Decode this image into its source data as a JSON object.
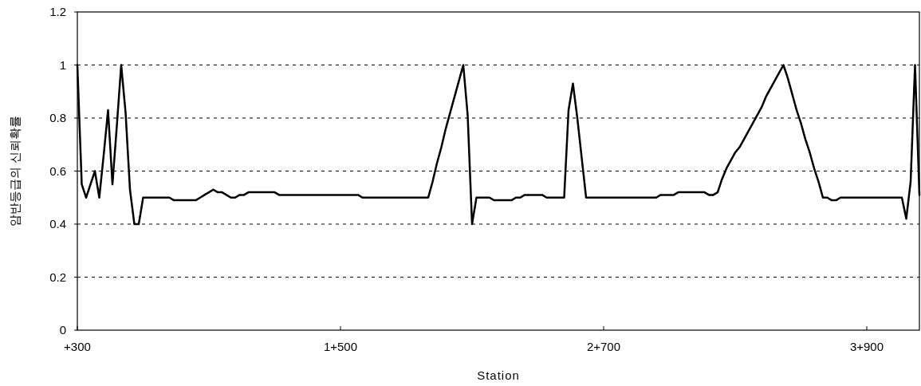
{
  "chart_data": {
    "type": "line",
    "xlabel": "Station",
    "ylabel": "암반등급의 신뢰확률",
    "categories": [
      "+300",
      null,
      null,
      null,
      null,
      null,
      null,
      null,
      null,
      null,
      null,
      null,
      null,
      null,
      null,
      null,
      null,
      null,
      null,
      null,
      null,
      null,
      null,
      null,
      null,
      null,
      null,
      null,
      null,
      null,
      null,
      null,
      null,
      null,
      null,
      null,
      null,
      null,
      null,
      null,
      null,
      null,
      null,
      null,
      null,
      null,
      null,
      null,
      null,
      null,
      null,
      null,
      null,
      null,
      null,
      null,
      null,
      null,
      null,
      null,
      "1+500",
      null,
      null,
      null,
      null,
      null,
      null,
      null,
      null,
      null,
      null,
      null,
      null,
      null,
      null,
      null,
      null,
      null,
      null,
      null,
      null,
      null,
      null,
      null,
      null,
      null,
      null,
      null,
      null,
      null,
      null,
      null,
      null,
      null,
      null,
      null,
      null,
      null,
      null,
      null,
      null,
      null,
      null,
      null,
      null,
      null,
      null,
      null,
      null,
      null,
      null,
      null,
      null,
      null,
      null,
      null,
      null,
      null,
      null,
      null,
      "2+700",
      null,
      null,
      null,
      null,
      null,
      null,
      null,
      null,
      null,
      null,
      null,
      null,
      null,
      null,
      null,
      null,
      null,
      null,
      null,
      null,
      null,
      null,
      null,
      null,
      null,
      null,
      null,
      null,
      null,
      null,
      null,
      null,
      null,
      null,
      null,
      null,
      null,
      null,
      null,
      null,
      null,
      null,
      null,
      null,
      null,
      null,
      null,
      null,
      null,
      null,
      null,
      null,
      null,
      null,
      null,
      null,
      null,
      null,
      null,
      "3+900",
      null,
      null,
      null,
      null,
      null,
      null,
      null,
      null,
      null,
      null,
      null,
      null
    ],
    "ylim": [
      0,
      1.2
    ],
    "yticks": [
      0,
      0.2,
      0.4,
      0.6,
      0.8,
      1,
      1.2
    ],
    "grid": "y",
    "marker": "none",
    "line_style": "solid",
    "series": [
      {
        "color": "#000000",
        "values": [
          1,
          0.55,
          0.5,
          0.55,
          0.6,
          0.5,
          0.66,
          0.83,
          0.55,
          0.77,
          1,
          0.82,
          0.53,
          0.4,
          0.4,
          0.5,
          0.5,
          0.5,
          0.5,
          0.5,
          0.5,
          0.5,
          0.49,
          0.49,
          0.49,
          0.49,
          0.49,
          0.49,
          0.5,
          0.51,
          0.52,
          0.53,
          0.52,
          0.52,
          0.51,
          0.5,
          0.5,
          0.51,
          0.51,
          0.52,
          0.52,
          0.52,
          0.52,
          0.52,
          0.52,
          0.52,
          0.51,
          0.51,
          0.51,
          0.51,
          0.51,
          0.51,
          0.51,
          0.51,
          0.51,
          0.51,
          0.51,
          0.51,
          0.51,
          0.51,
          0.51,
          0.51,
          0.51,
          0.51,
          0.51,
          0.5,
          0.5,
          0.5,
          0.5,
          0.5,
          0.5,
          0.5,
          0.5,
          0.5,
          0.5,
          0.5,
          0.5,
          0.5,
          0.5,
          0.5,
          0.5,
          0.56,
          0.63,
          0.69,
          0.76,
          0.82,
          0.88,
          0.94,
          1,
          0.81,
          0.4,
          0.5,
          0.5,
          0.5,
          0.5,
          0.49,
          0.49,
          0.49,
          0.49,
          0.49,
          0.5,
          0.5,
          0.51,
          0.51,
          0.51,
          0.51,
          0.51,
          0.5,
          0.5,
          0.5,
          0.5,
          0.5,
          0.83,
          0.93,
          0.8,
          0.65,
          0.5,
          0.5,
          0.5,
          0.5,
          0.5,
          0.5,
          0.5,
          0.5,
          0.5,
          0.5,
          0.5,
          0.5,
          0.5,
          0.5,
          0.5,
          0.5,
          0.5,
          0.51,
          0.51,
          0.51,
          0.51,
          0.52,
          0.52,
          0.52,
          0.52,
          0.52,
          0.52,
          0.52,
          0.51,
          0.51,
          0.52,
          0.57,
          0.61,
          0.64,
          0.67,
          0.69,
          0.72,
          0.75,
          0.78,
          0.81,
          0.84,
          0.88,
          0.91,
          0.94,
          0.97,
          1,
          0.95,
          0.89,
          0.83,
          0.78,
          0.72,
          0.67,
          0.61,
          0.56,
          0.5,
          0.5,
          0.49,
          0.49,
          0.5,
          0.5,
          0.5,
          0.5,
          0.5,
          0.5,
          0.5,
          0.5,
          0.5,
          0.5,
          0.5,
          0.5,
          0.5,
          0.5,
          0.5,
          0.42,
          0.56,
          1,
          0.51
        ]
      }
    ]
  }
}
